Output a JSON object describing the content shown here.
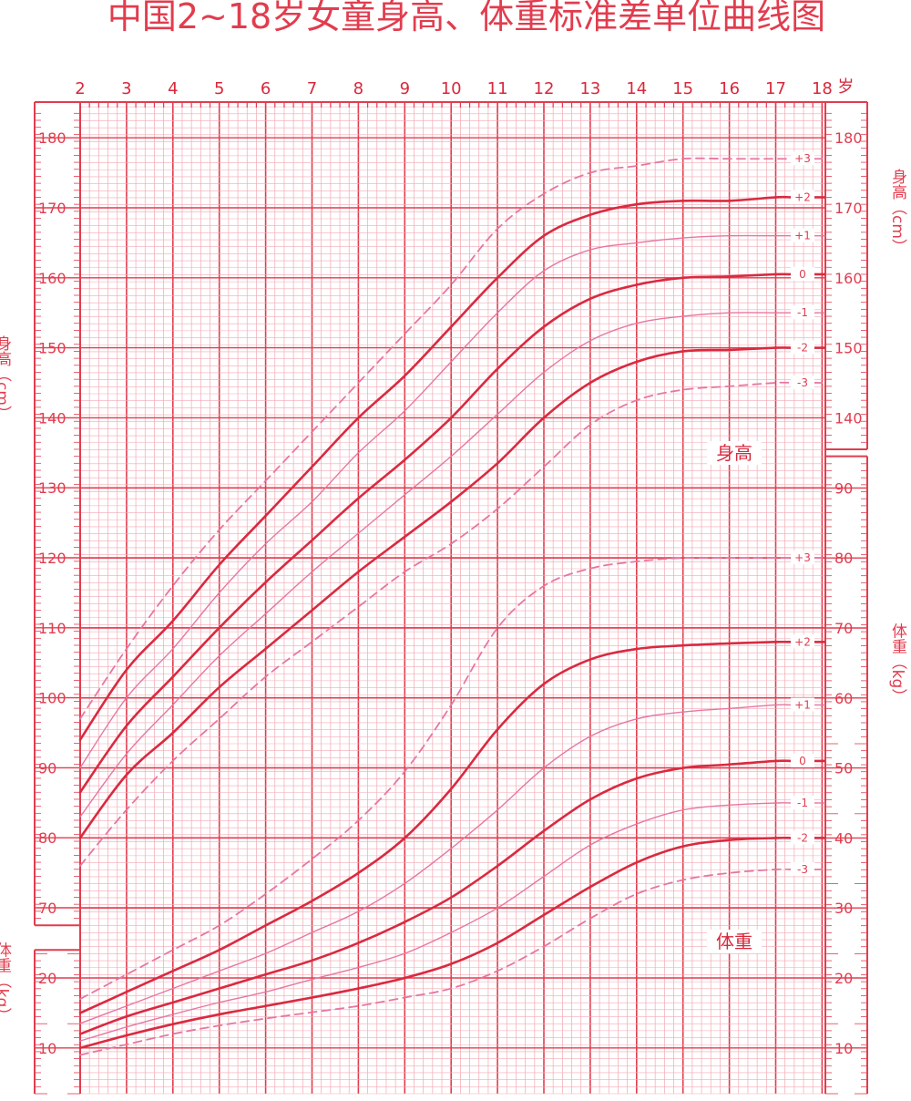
{
  "title": "中国2~18岁女童身高、体重标准差单位曲线图",
  "colors": {
    "grid": "#f2a9b3",
    "major": "#e23c4e",
    "curve": "#d92a40",
    "thin": "#e677a2",
    "text": "#e23c4e"
  },
  "chart_data": {
    "type": "line",
    "title": "中国2~18岁女童身高、体重标准差单位曲线图",
    "x_label": "岁",
    "x_ticks": [
      "2",
      "3",
      "4",
      "5",
      "6",
      "7",
      "8",
      "9",
      "10",
      "11",
      "12",
      "13",
      "14",
      "15",
      "16",
      "17",
      "18"
    ],
    "grid": true,
    "panels": [
      {
        "name": "身高",
        "ylabel": "身高（cm）",
        "ylim": [
          65,
          186
        ],
        "left_ticks": [
          "180",
          "170",
          "160",
          "150",
          "140",
          "130",
          "120",
          "110",
          "100",
          "90",
          "80",
          "70"
        ],
        "right_ticks": [
          "180",
          "170",
          "160",
          "150",
          "140"
        ],
        "x": [
          2,
          3,
          4,
          5,
          6,
          7,
          8,
          9,
          10,
          11,
          12,
          13,
          14,
          15,
          16,
          17
        ],
        "series": [
          {
            "name": "+3",
            "values": [
              97,
              107,
              116,
              124,
              131,
              138,
              145,
              152,
              159,
              167,
              172,
              175,
              176,
              177,
              177,
              177
            ]
          },
          {
            "name": "+2",
            "values": [
              94,
              104,
              111,
              119,
              126,
              133,
              140,
              146,
              153,
              160,
              166,
              169,
              170.5,
              171,
              171,
              171.5
            ]
          },
          {
            "name": "+1",
            "values": [
              90,
              100,
              107,
              115,
              122,
              128,
              135,
              141,
              148,
              155,
              161,
              164,
              165,
              165.7,
              166,
              166
            ]
          },
          {
            "name": "0",
            "values": [
              86.5,
              96,
              103,
              110,
              116.5,
              122.5,
              128.5,
              134,
              140,
              147,
              153,
              157,
              159,
              160,
              160.2,
              160.5
            ]
          },
          {
            "name": "-1",
            "values": [
              83,
              92,
              99,
              106,
              112,
              118,
              123.5,
              129,
              134.5,
              140.5,
              146.5,
              151,
              153.5,
              154.5,
              155,
              155
            ]
          },
          {
            "name": "-2",
            "values": [
              80,
              89,
              95,
              101.5,
              107,
              112.5,
              118,
              123,
              128,
              133.5,
              140,
              145,
              148,
              149.5,
              149.7,
              150
            ]
          },
          {
            "name": "-3",
            "values": [
              76,
              84,
              91,
              97,
              103,
              108,
              113,
              118,
              122,
              127,
              133,
              139,
              142.5,
              144,
              144.5,
              145
            ]
          }
        ]
      },
      {
        "name": "体重",
        "ylabel": "体重（kg）",
        "ylim": [
          5,
          96
        ],
        "left_ticks": [
          "20",
          "10"
        ],
        "right_ticks": [
          "90",
          "80",
          "70",
          "60",
          "50",
          "40",
          "30",
          "20",
          "10"
        ],
        "x": [
          2,
          3,
          4,
          5,
          6,
          7,
          8,
          9,
          10,
          11,
          12,
          13,
          14,
          15,
          16,
          17
        ],
        "series": [
          {
            "name": "+3",
            "values": [
              17,
              20.5,
              24,
              27.5,
              32,
              37,
              42.5,
              49.5,
              59,
              70,
              76,
              78.5,
              79.5,
              80,
              80,
              80
            ]
          },
          {
            "name": "+2",
            "values": [
              15,
              18,
              21,
              24,
              27.5,
              31,
              35,
              40,
              47,
              55.5,
              62,
              65.5,
              67,
              67.5,
              67.8,
              68
            ]
          },
          {
            "name": "+1",
            "values": [
              13.5,
              16,
              18.5,
              21,
              23.5,
              26.5,
              29.5,
              33.5,
              38.5,
              44,
              50,
              54.5,
              57,
              58,
              58.5,
              59
            ]
          },
          {
            "name": "0",
            "values": [
              12,
              14.5,
              16.5,
              18.5,
              20.5,
              22.5,
              25,
              28,
              31.5,
              36,
              41,
              45.5,
              48.5,
              50,
              50.5,
              51
            ]
          },
          {
            "name": "-1",
            "values": [
              11,
              13,
              14.8,
              16.5,
              18,
              19.8,
              21.5,
              23.5,
              26.5,
              30,
              34.5,
              39,
              42,
              44,
              44.7,
              45
            ]
          },
          {
            "name": "-2",
            "values": [
              10,
              11.8,
              13.4,
              14.8,
              16,
              17.2,
              18.5,
              20,
              22,
              25,
              29,
              33,
              36.5,
              38.8,
              39.7,
              40
            ]
          },
          {
            "name": "-3",
            "values": [
              9,
              10.5,
              12,
              13.2,
              14.2,
              15.1,
              16,
              17.2,
              18.5,
              21,
              24.5,
              28.5,
              32,
              34,
              35,
              35.5
            ]
          }
        ]
      }
    ],
    "curve_labels": {
      "height": [
        "+3",
        "+2",
        "+1",
        "0",
        "-1",
        "-2",
        "-3"
      ],
      "weight": [
        "+3",
        "+2",
        "+1",
        "0",
        "-1",
        "-2",
        "-3"
      ]
    },
    "section_labels": {
      "height": "身高",
      "weight": "体重"
    }
  }
}
